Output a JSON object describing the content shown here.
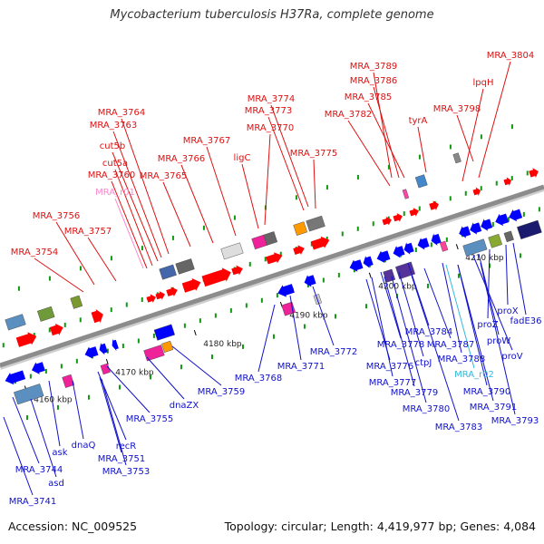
{
  "title": "Mycobacterium tuberculosis H37Ra, complete genome",
  "footer": {
    "accession": "Accession: NC_009525",
    "summary": "Topology: circular; Length: 4,419,977 bp; Genes: 4,084"
  },
  "colors": {
    "backbone": "#8c8c8c",
    "forward_label": "#dd1111",
    "reverse_label": "#1111cc",
    "forward_feature": "#ff0000",
    "reverse_feature": "#0000ff",
    "rna_forward_label": "#ff88cc",
    "rna_reverse_label": "#33bbdd",
    "tick": "#119911"
  },
  "scale": {
    "ticks": [
      {
        "label": "4160 kbp",
        "pos": 4160
      },
      {
        "label": "4170 kbp",
        "pos": 4170
      },
      {
        "label": "4180 kbp",
        "pos": 4180
      },
      {
        "label": "4190 kbp",
        "pos": 4190
      },
      {
        "label": "4200 kbp",
        "pos": 4200
      },
      {
        "label": "4210 kbp",
        "pos": 4210
      }
    ]
  },
  "forward_labels": [
    {
      "text": "MRA_3804",
      "kind": "gene"
    },
    {
      "text": "lpqH",
      "kind": "gene"
    },
    {
      "text": "MRA_3789",
      "kind": "gene"
    },
    {
      "text": "MRA_3786",
      "kind": "gene"
    },
    {
      "text": "MRA_3785",
      "kind": "gene"
    },
    {
      "text": "MRA_3798",
      "kind": "gene"
    },
    {
      "text": "MRA_3782",
      "kind": "gene"
    },
    {
      "text": "tyrA",
      "kind": "gene"
    },
    {
      "text": "MRA_3774",
      "kind": "gene"
    },
    {
      "text": "MRA_3773",
      "kind": "gene"
    },
    {
      "text": "MRA_3764",
      "kind": "gene"
    },
    {
      "text": "MRA_3770",
      "kind": "gene"
    },
    {
      "text": "MRA_3763",
      "kind": "gene"
    },
    {
      "text": "MRA_3767",
      "kind": "gene"
    },
    {
      "text": "cut5b",
      "kind": "gene"
    },
    {
      "text": "ligC",
      "kind": "gene"
    },
    {
      "text": "MRA_3775",
      "kind": "gene"
    },
    {
      "text": "MRA_3766",
      "kind": "gene"
    },
    {
      "text": "cut5a",
      "kind": "gene"
    },
    {
      "text": "MRA_3760",
      "kind": "gene"
    },
    {
      "text": "MRA_3765",
      "kind": "gene"
    },
    {
      "text": "MRA_r01",
      "kind": "rna"
    },
    {
      "text": "MRA_3756",
      "kind": "gene"
    },
    {
      "text": "MRA_3757",
      "kind": "gene"
    },
    {
      "text": "MRA_3754",
      "kind": "gene"
    }
  ],
  "reverse_labels": [
    {
      "text": "proX",
      "kind": "gene"
    },
    {
      "text": "fadE36",
      "kind": "gene"
    },
    {
      "text": "proZ",
      "kind": "gene"
    },
    {
      "text": "proW",
      "kind": "gene"
    },
    {
      "text": "proV",
      "kind": "gene"
    },
    {
      "text": "MRA_3784",
      "kind": "gene"
    },
    {
      "text": "MRA_3778",
      "kind": "gene"
    },
    {
      "text": "MRA_3787",
      "kind": "gene"
    },
    {
      "text": "MRA_3772",
      "kind": "gene"
    },
    {
      "text": "ctpJ",
      "kind": "gene"
    },
    {
      "text": "MRA_3788",
      "kind": "gene"
    },
    {
      "text": "MRA_3776",
      "kind": "gene"
    },
    {
      "text": "MRA_r02",
      "kind": "rna"
    },
    {
      "text": "MRA_3771",
      "kind": "gene"
    },
    {
      "text": "MRA_3777",
      "kind": "gene"
    },
    {
      "text": "MRA_3790",
      "kind": "gene"
    },
    {
      "text": "MRA_3768",
      "kind": "gene"
    },
    {
      "text": "MRA_3779",
      "kind": "gene"
    },
    {
      "text": "MRA_3759",
      "kind": "gene"
    },
    {
      "text": "MRA_3791",
      "kind": "gene"
    },
    {
      "text": "MRA_3780",
      "kind": "gene"
    },
    {
      "text": "dnaZX",
      "kind": "gene"
    },
    {
      "text": "MRA_3793",
      "kind": "gene"
    },
    {
      "text": "MRA_3783",
      "kind": "gene"
    },
    {
      "text": "MRA_3755",
      "kind": "gene"
    },
    {
      "text": "dnaQ",
      "kind": "gene"
    },
    {
      "text": "recR",
      "kind": "gene"
    },
    {
      "text": "ask",
      "kind": "gene"
    },
    {
      "text": "MRA_3751",
      "kind": "gene"
    },
    {
      "text": "MRA_3753",
      "kind": "gene"
    },
    {
      "text": "MRA_3744",
      "kind": "gene"
    },
    {
      "text": "asd",
      "kind": "gene"
    },
    {
      "text": "MRA_3741",
      "kind": "gene"
    }
  ]
}
